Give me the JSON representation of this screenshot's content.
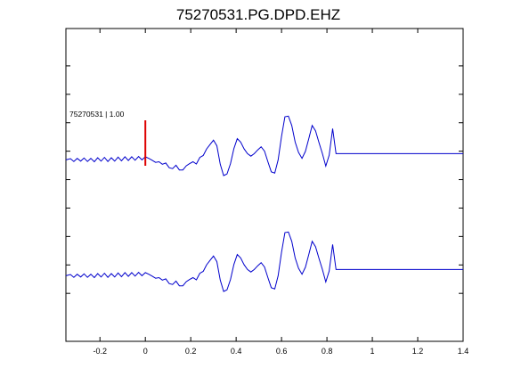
{
  "chart_data": {
    "type": "line",
    "title": "75270531.PG.DPD.EHZ",
    "xlabel": "",
    "ylabel": "",
    "xlim": [
      -0.35,
      1.4
    ],
    "ylim": [
      0,
      1
    ],
    "x_ticks": [
      -0.2,
      0,
      0.2,
      0.4,
      0.6,
      0.8,
      1.0,
      1.2,
      1.4
    ],
    "x_tick_labels": [
      "-0.2",
      "0",
      "0.2",
      "0.4",
      "0.6",
      "0.8",
      "1",
      "1.2",
      "1.4"
    ],
    "grid": false,
    "line_color": "#0000cc",
    "pick_color": "#dd0000",
    "annotation": "75270531 | 1.00",
    "pick_time": 0,
    "series": [
      {
        "x": [
          -0.35,
          -0.33,
          -0.315,
          -0.3,
          -0.285,
          -0.27,
          -0.255,
          -0.24,
          -0.225,
          -0.21,
          -0.195,
          -0.18,
          -0.165,
          -0.15,
          -0.135,
          -0.12,
          -0.105,
          -0.09,
          -0.075,
          -0.06,
          -0.045,
          -0.03,
          -0.015,
          0,
          0.015,
          0.03,
          0.045,
          0.06,
          0.075,
          0.09,
          0.105,
          0.12,
          0.135,
          0.15,
          0.165,
          0.18,
          0.195,
          0.21,
          0.225,
          0.24,
          0.255,
          0.27,
          0.285,
          0.3,
          0.315,
          0.33,
          0.345,
          0.36,
          0.375,
          0.39,
          0.405,
          0.42,
          0.435,
          0.45,
          0.465,
          0.48,
          0.495,
          0.51,
          0.525,
          0.54,
          0.555,
          0.57,
          0.585,
          0.6,
          0.615,
          0.63,
          0.645,
          0.66,
          0.675,
          0.69,
          0.705,
          0.72,
          0.735,
          0.75,
          0.765,
          0.78,
          0.795,
          0.81,
          0.825,
          0.84,
          0.855,
          0.87,
          0.885,
          0.9,
          0.915,
          0.93,
          0.945,
          0.96,
          0.975,
          0.99,
          1.005,
          1.02,
          1.035,
          1.05,
          1.065,
          1.08,
          1.095,
          1.11,
          1.125,
          1.14,
          1.155,
          1.17,
          1.185,
          1.2,
          1.215,
          1.23,
          1.245,
          1.26,
          1.275,
          1.29,
          1.305,
          1.32,
          1.335,
          1.35,
          1.365,
          1.38,
          1.395,
          1.4
        ],
        "y": [
          0.58,
          0.584,
          0.575,
          0.585,
          0.576,
          0.586,
          0.575,
          0.585,
          0.574,
          0.587,
          0.576,
          0.588,
          0.575,
          0.587,
          0.576,
          0.589,
          0.577,
          0.59,
          0.578,
          0.59,
          0.579,
          0.591,
          0.58,
          0.59,
          0.585,
          0.579,
          0.572,
          0.574,
          0.566,
          0.57,
          0.555,
          0.552,
          0.563,
          0.548,
          0.548,
          0.561,
          0.568,
          0.574,
          0.567,
          0.588,
          0.594,
          0.615,
          0.629,
          0.643,
          0.625,
          0.566,
          0.53,
          0.535,
          0.568,
          0.616,
          0.648,
          0.637,
          0.615,
          0.6,
          0.592,
          0.6,
          0.612,
          0.622,
          0.608,
          0.574,
          0.542,
          0.538,
          0.58,
          0.655,
          0.718,
          0.72,
          0.69,
          0.637,
          0.604,
          0.585,
          0.607,
          0.648,
          0.69,
          0.673,
          0.635,
          0.6,
          0.56,
          0.595,
          0.68,
          0.6,
          0.6,
          0.6,
          0.6,
          0.6,
          0.6,
          0.6,
          0.6,
          0.6,
          0.6,
          0.6,
          0.6,
          0.6,
          0.6,
          0.6,
          0.6,
          0.6,
          0.6,
          0.6,
          0.6,
          0.6,
          0.6,
          0.6,
          0.6,
          0.6,
          0.6,
          0.6,
          0.6,
          0.6,
          0.6,
          0.6,
          0.6,
          0.6,
          0.6,
          0.6,
          0.6,
          0.6,
          0.6,
          0.6
        ]
      }
    ]
  }
}
